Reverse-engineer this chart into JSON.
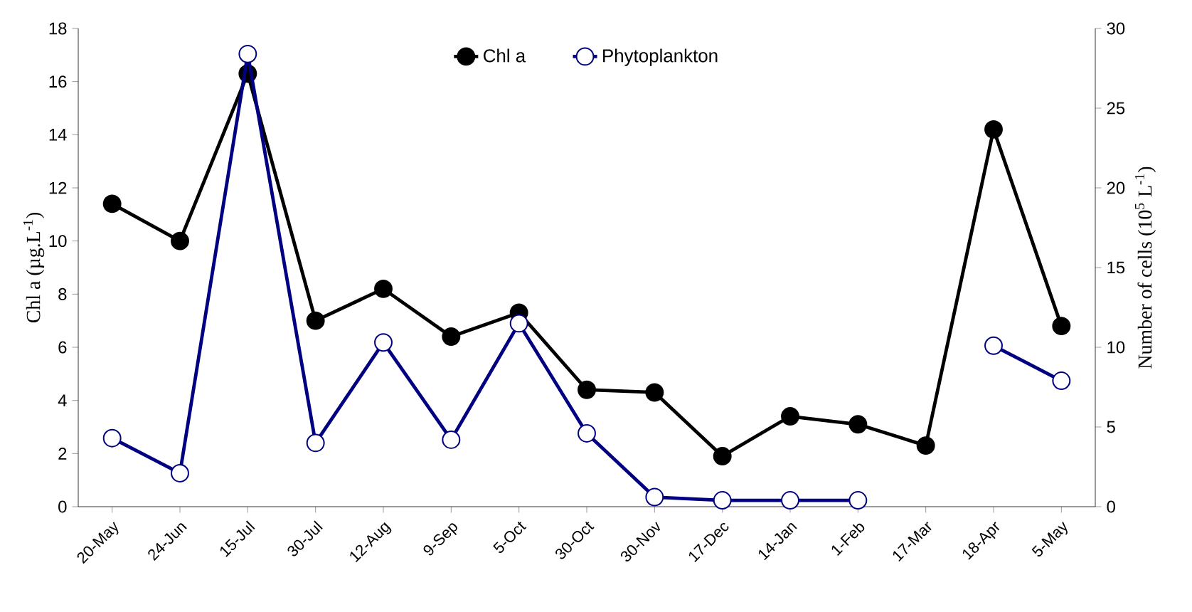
{
  "chart_data": {
    "type": "line",
    "categories": [
      "20-May",
      "24-Jun",
      "15-Jul",
      "30-Jul",
      "12-Aug",
      "9-Sep",
      "5-Oct",
      "30-Oct",
      "30-Nov",
      "17-Dec",
      "14-Jan",
      "1-Feb",
      "17-Mar",
      "18-Apr",
      "5-May"
    ],
    "series": [
      {
        "name": "Chl a",
        "color": "#000000",
        "values": [
          11.4,
          10.0,
          16.3,
          7.0,
          8.2,
          6.4,
          7.3,
          4.4,
          4.3,
          1.9,
          3.4,
          3.1,
          2.3,
          14.2,
          6.8
        ]
      },
      {
        "name": "Phytoplankton",
        "color": "#000080",
        "axis": "y2",
        "values": [
          4.3,
          2.1,
          28.4,
          4.0,
          10.3,
          4.2,
          11.5,
          4.6,
          0.6,
          0.4,
          0.4,
          0.4,
          null,
          10.1,
          7.9
        ]
      }
    ],
    "ylabel": "Chl a (µg.L$^{-1}$)",
    "y2label": "Number of cells (10$^{5}$ L$^{-1}$)",
    "ylim": [
      0,
      18
    ],
    "yticks": [
      0,
      2,
      4,
      6,
      8,
      10,
      12,
      14,
      16,
      18
    ],
    "y2lim": [
      0,
      30
    ],
    "y2ticks": [
      0,
      5,
      10,
      15,
      20,
      25,
      30
    ],
    "marker": "circle",
    "line_style": "solid",
    "legend": "top",
    "grid": false
  }
}
